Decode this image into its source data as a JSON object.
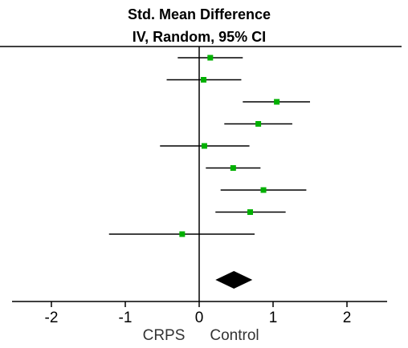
{
  "chart_data": {
    "type": "forest",
    "title": "Std. Mean Difference",
    "subtitle": "IV, Random, 95% CI",
    "xlim": [
      -2.5,
      2.5
    ],
    "x_ticks": [
      -2,
      -1,
      0,
      1,
      2
    ],
    "x_tick_labels": [
      "-2",
      "-1",
      "0",
      "1",
      "2"
    ],
    "left_label": "CRPS",
    "right_label": "Control",
    "marker_color": "#00b000",
    "studies": [
      {
        "estimate": 0.15,
        "ci": [
          -0.29,
          0.59
        ]
      },
      {
        "estimate": 0.06,
        "ci": [
          -0.44,
          0.57
        ]
      },
      {
        "estimate": 1.05,
        "ci": [
          0.59,
          1.5
        ]
      },
      {
        "estimate": 0.8,
        "ci": [
          0.34,
          1.26
        ]
      },
      {
        "estimate": 0.07,
        "ci": [
          -0.53,
          0.68
        ]
      },
      {
        "estimate": 0.46,
        "ci": [
          0.09,
          0.83
        ]
      },
      {
        "estimate": 0.87,
        "ci": [
          0.29,
          1.45
        ]
      },
      {
        "estimate": 0.69,
        "ci": [
          0.22,
          1.17
        ]
      },
      {
        "estimate": -0.23,
        "ci": [
          -1.22,
          0.75
        ]
      }
    ],
    "pooled": {
      "estimate": 0.47,
      "ci": [
        0.22,
        0.72
      ]
    }
  }
}
